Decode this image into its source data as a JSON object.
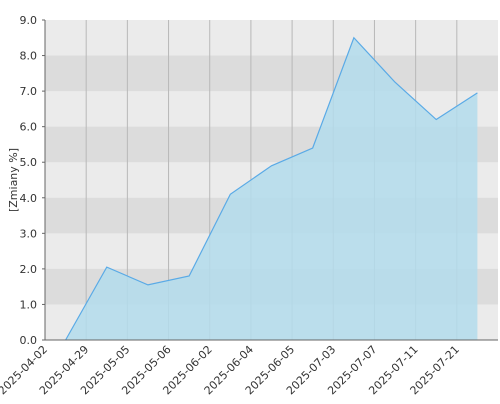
{
  "chart_data": {
    "type": "area",
    "y_label": "[Zmiany %]",
    "categories": [
      "2025-04-02",
      "2025-04-29",
      "2025-05-05",
      "2025-05-06",
      "2025-06-02",
      "2025-06-04",
      "2025-06-05",
      "2025-07-03",
      "2025-07-07",
      "2025-07-11",
      "2025-07-21"
    ],
    "values": [
      0.0,
      2.05,
      1.55,
      1.8,
      4.1,
      4.9,
      5.4,
      8.5,
      7.25,
      6.2,
      6.95
    ],
    "color": "#5aaae6",
    "fill": "#b3dcec",
    "ylim": [
      0,
      9
    ],
    "yticks": [
      {
        "value": 0,
        "label": "0.0"
      },
      {
        "value": 1,
        "label": "1.0"
      },
      {
        "value": 2,
        "label": "2.0"
      },
      {
        "value": 3,
        "label": "3.0"
      },
      {
        "value": 4,
        "label": "4.0"
      },
      {
        "value": 5,
        "label": "5.0"
      },
      {
        "value": 6,
        "label": "6.0"
      },
      {
        "value": 7,
        "label": "7.0"
      },
      {
        "value": 8,
        "label": "8.0"
      },
      {
        "value": 9,
        "label": "9.0"
      }
    ],
    "grid": true
  }
}
